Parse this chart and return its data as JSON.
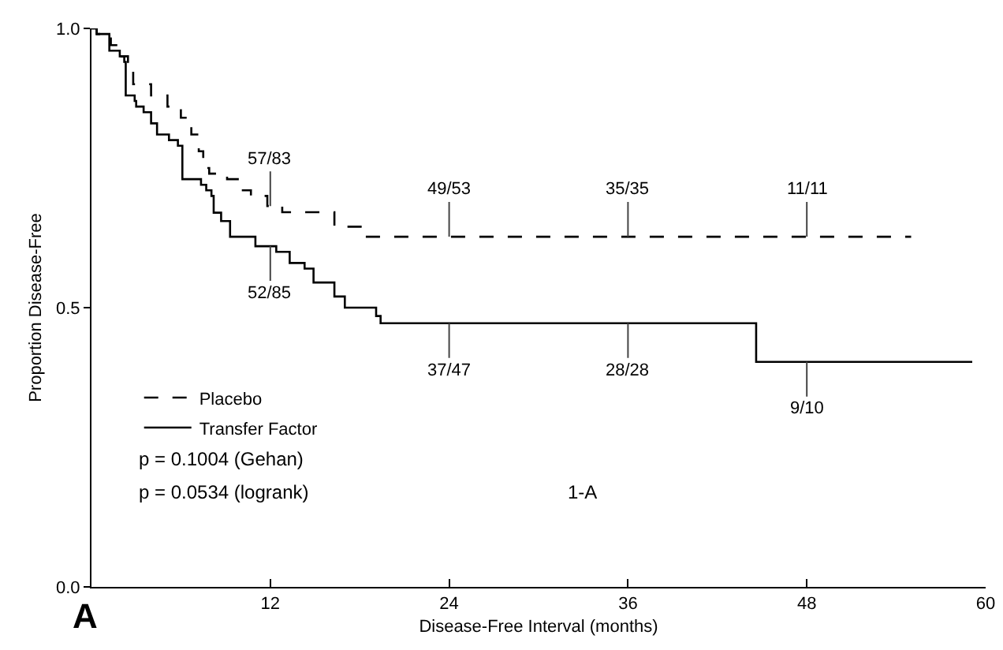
{
  "chart_data": {
    "type": "step",
    "xlabel": "Disease-Free Interval (months)",
    "ylabel": "Proportion Disease-Free",
    "xlim": [
      0,
      60
    ],
    "ylim": [
      0,
      1
    ],
    "xticks": [
      12,
      24,
      36,
      48,
      60
    ],
    "yticks": [
      {
        "value": 0,
        "label": "0.0"
      },
      0.5,
      {
        "value": 1,
        "label": "1.0"
      }
    ],
    "grid": false,
    "legend": "bottom left",
    "marker": "none",
    "series": [
      {
        "name": "Placebo",
        "color": "#000000",
        "line_style": "dashed",
        "x": [
          0,
          0.35,
          1.3,
          1.75,
          2.45,
          2.8,
          4.0,
          5.1,
          6.0,
          6.7,
          7.2,
          7.5,
          7.9,
          9.1,
          10.0,
          10.7,
          11.8,
          12.8,
          16.3,
          18.4,
          55
        ],
        "values": [
          1.0,
          0.99,
          0.97,
          0.95,
          0.93,
          0.9,
          0.88,
          0.86,
          0.84,
          0.81,
          0.78,
          0.75,
          0.74,
          0.73,
          0.71,
          0.7,
          0.682,
          0.671,
          0.645,
          0.627,
          0.627
        ]
      },
      {
        "name": "Transfer Factor",
        "color": "#000000",
        "line_style": "solid",
        "x": [
          0,
          0.35,
          1.2,
          1.9,
          2.2,
          2.3,
          2.9,
          3.0,
          3.5,
          4.0,
          4.4,
          5.2,
          5.8,
          6.1,
          7.35,
          7.7,
          8.05,
          8.2,
          8.7,
          9.3,
          11.0,
          12.4,
          13.3,
          14.3,
          14.9,
          16.3,
          17.0,
          19.1,
          19.4,
          44.6,
          59.1
        ],
        "values": [
          1.0,
          0.99,
          0.96,
          0.95,
          0.94,
          0.88,
          0.87,
          0.86,
          0.85,
          0.83,
          0.81,
          0.8,
          0.79,
          0.73,
          0.72,
          0.71,
          0.7,
          0.67,
          0.655,
          0.627,
          0.61,
          0.6,
          0.58,
          0.57,
          0.545,
          0.52,
          0.5,
          0.485,
          0.472,
          0.403,
          0.403
        ]
      }
    ],
    "annotations": [
      {
        "text": "57/83",
        "x": 12,
        "y": 0.682
      },
      {
        "text": "49/53",
        "x": 24,
        "y": 0.627
      },
      {
        "text": "35/35",
        "x": 36,
        "y": 0.627
      },
      {
        "text": "11/11",
        "x": 48,
        "y": 0.627
      },
      {
        "text": "52/85",
        "x": 12,
        "y": 0.61
      },
      {
        "text": "37/47",
        "x": 24,
        "y": 0.472
      },
      {
        "text": "28/28",
        "x": 36,
        "y": 0.472
      },
      {
        "text": "9/10",
        "x": 48,
        "y": 0.403
      },
      "p = 0.1004 (Gehan)",
      "p = 0.0534 (logrank)",
      "1-A",
      "A"
    ]
  }
}
